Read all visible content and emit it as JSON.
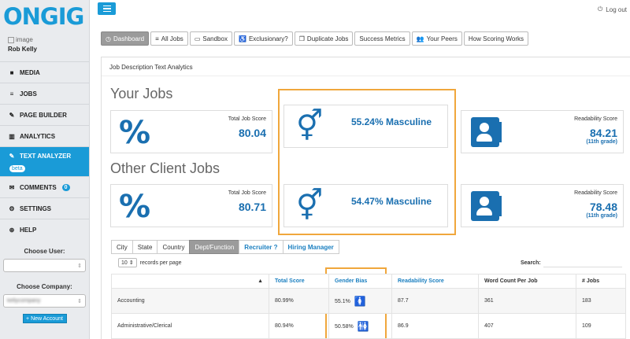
{
  "app": {
    "logo": "ONGIG",
    "logout": "Log out"
  },
  "user": {
    "image_alt": "image",
    "name": "Rob Kelly"
  },
  "sidebar": {
    "items": [
      {
        "icon": "video-icon",
        "label": "MEDIA"
      },
      {
        "icon": "list-icon",
        "label": "JOBS"
      },
      {
        "icon": "wrench-icon",
        "label": "PAGE BUILDER"
      },
      {
        "icon": "chart-icon",
        "label": "ANALYTICS"
      },
      {
        "icon": "pencil-icon",
        "label": "TEXT ANALYZER",
        "badge": "beta"
      },
      {
        "icon": "comment-icon",
        "label": "COMMENTS",
        "badge": "0"
      },
      {
        "icon": "gear-icon",
        "label": "SETTINGS"
      },
      {
        "icon": "help-icon",
        "label": "HELP"
      }
    ],
    "choose_user_label": "Choose User:",
    "choose_user_value": "",
    "choose_company_label": "Choose Company:",
    "choose_company_value": "kellycompany",
    "new_account": "+ New Account"
  },
  "tabs": [
    {
      "icon": "dashboard-icon",
      "label": "Dashboard",
      "active": true
    },
    {
      "icon": "list-icon",
      "label": "All Jobs"
    },
    {
      "icon": "sandbox-icon",
      "label": "Sandbox"
    },
    {
      "icon": "accessibility-icon",
      "label": "Exclusionary?"
    },
    {
      "icon": "copy-icon",
      "label": "Duplicate Jobs"
    },
    {
      "icon": "",
      "label": "Success Metrics"
    },
    {
      "icon": "users-icon",
      "label": "Your Peers"
    },
    {
      "icon": "",
      "label": "How Scoring Works"
    }
  ],
  "panel": {
    "title": "Job Description Text Analytics"
  },
  "your_jobs": {
    "heading": "Your Jobs",
    "total_score_label": "Total Job Score",
    "total_score": "80.04",
    "gender": "55.24% Masculine",
    "readability_label": "Readability Score",
    "readability": "84.21",
    "grade": "(11th grade)"
  },
  "other_jobs": {
    "heading": "Other Client Jobs",
    "total_score_label": "Total Job Score",
    "total_score": "80.71",
    "gender": "54.47% Masculine",
    "readability_label": "Readability Score",
    "readability": "78.48",
    "grade": "(11th grade)"
  },
  "filter_tabs": [
    {
      "label": "City"
    },
    {
      "label": "State"
    },
    {
      "label": "Country"
    },
    {
      "label": "Dept/Function",
      "active": true
    },
    {
      "label": "Recruiter ?",
      "link": true
    },
    {
      "label": "Hiring Manager",
      "link": true
    }
  ],
  "records": {
    "count": "10",
    "label": "records per page"
  },
  "search_label": "Search:",
  "table": {
    "headers": [
      "",
      "Total Score",
      "Gender Bias",
      "Readability Score",
      "Word Count Per Job",
      "# Jobs"
    ],
    "rows": [
      {
        "dept": "Accounting",
        "score": "80.99%",
        "bias": "55.1%",
        "bias_color": "#e5597b",
        "readability": "87.7",
        "words": "361",
        "jobs": "183"
      },
      {
        "dept": "Administrative/Clerical",
        "score": "80.94%",
        "bias": "50.58%",
        "bias_color": "#1f9e6e",
        "readability": "86.9",
        "words": "407",
        "jobs": "109"
      }
    ]
  },
  "colors": {
    "brand": "#1a9bd7",
    "accent": "#1a6fb0",
    "highlight": "#f0a73c"
  }
}
